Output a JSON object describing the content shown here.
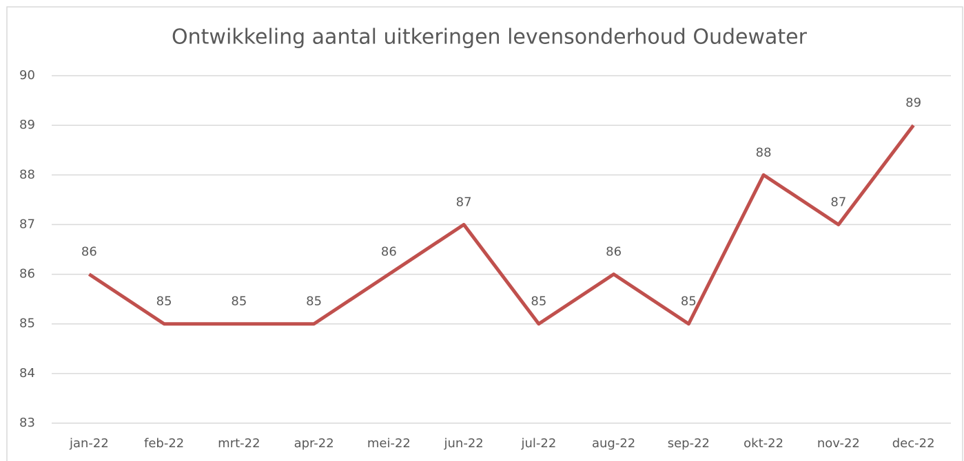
{
  "chart_data": {
    "type": "line",
    "title": "Ontwikkeling aantal uitkeringen levensonderhoud  Oudewater",
    "categories": [
      "jan-22",
      "feb-22",
      "mrt-22",
      "apr-22",
      "mei-22",
      "jun-22",
      "jul-22",
      "aug-22",
      "sep-22",
      "okt-22",
      "nov-22",
      "dec-22"
    ],
    "values": [
      86,
      85,
      85,
      85,
      86,
      87,
      85,
      86,
      85,
      88,
      87,
      89
    ],
    "color": "#c0504d",
    "ylim": [
      83,
      90
    ],
    "yticks": [
      83,
      84,
      85,
      86,
      87,
      88,
      89,
      90
    ],
    "grid": true
  }
}
